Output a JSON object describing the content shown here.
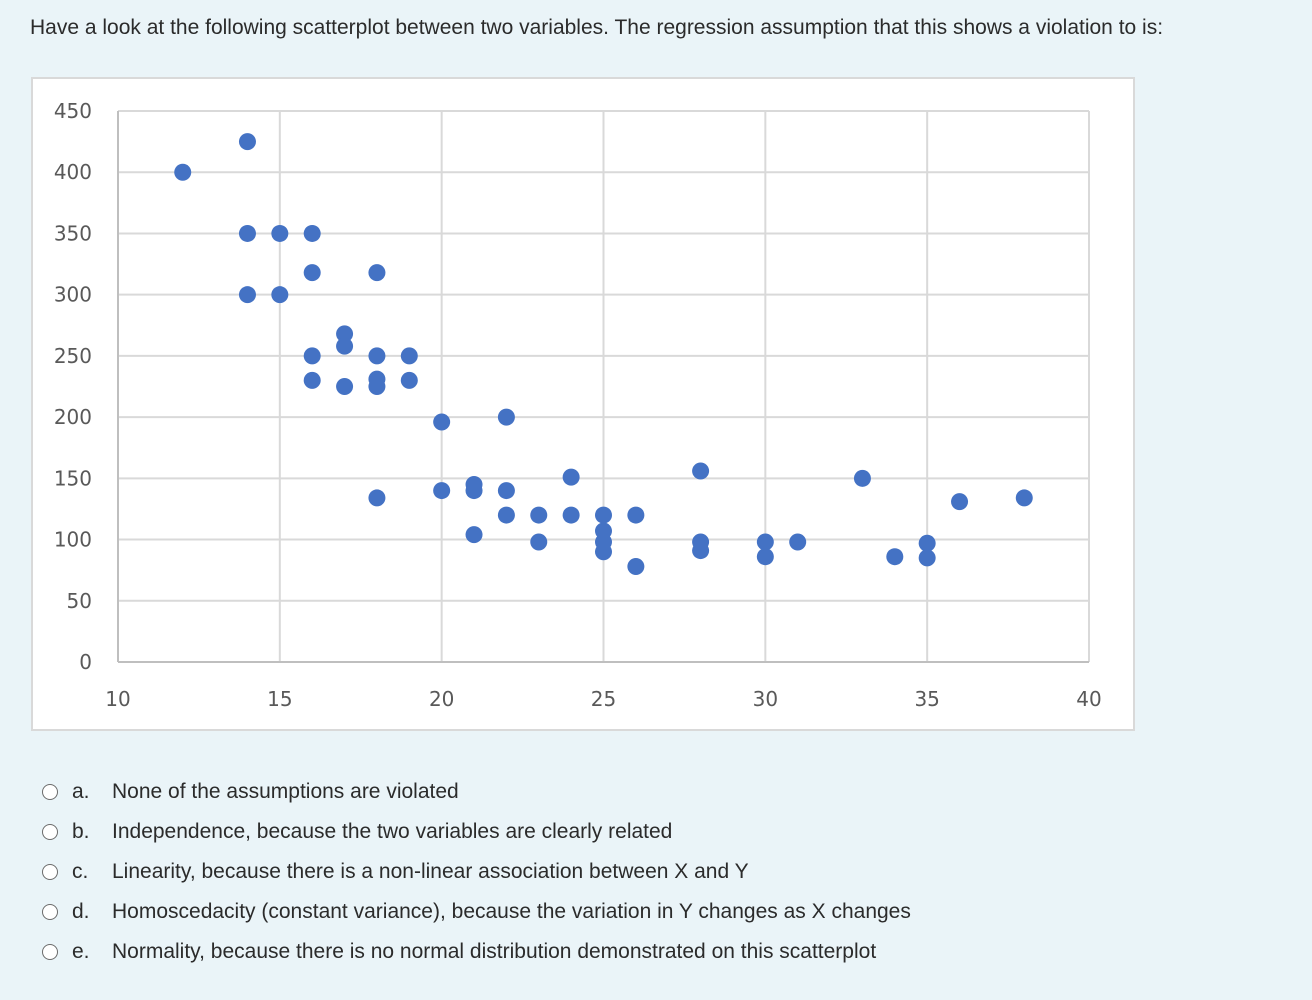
{
  "question": {
    "text": "Have a look at the following scatterplot between two variables. The regression assumption that this shows a violation to is:"
  },
  "chart_data": {
    "type": "scatter",
    "title": "",
    "xlabel": "",
    "ylabel": "",
    "xlim": [
      10,
      40
    ],
    "ylim": [
      0,
      450
    ],
    "x_ticks": [
      10,
      15,
      20,
      25,
      30,
      35,
      40
    ],
    "y_ticks": [
      0,
      50,
      100,
      150,
      200,
      250,
      300,
      350,
      400,
      450
    ],
    "grid": true,
    "marker_color": "#4472c4",
    "points": [
      [
        12,
        400
      ],
      [
        14,
        425
      ],
      [
        14,
        350
      ],
      [
        14,
        300
      ],
      [
        15,
        350
      ],
      [
        15,
        300
      ],
      [
        16,
        350
      ],
      [
        16,
        318
      ],
      [
        16,
        250
      ],
      [
        16,
        230
      ],
      [
        17,
        268
      ],
      [
        17,
        258
      ],
      [
        17,
        225
      ],
      [
        18,
        318
      ],
      [
        18,
        250
      ],
      [
        18,
        231
      ],
      [
        18,
        225
      ],
      [
        18,
        134
      ],
      [
        19,
        250
      ],
      [
        19,
        230
      ],
      [
        20,
        196
      ],
      [
        20,
        140
      ],
      [
        21,
        145
      ],
      [
        21,
        140
      ],
      [
        21,
        104
      ],
      [
        22,
        200
      ],
      [
        22,
        140
      ],
      [
        22,
        120
      ],
      [
        23,
        120
      ],
      [
        23,
        98
      ],
      [
        24,
        151
      ],
      [
        24,
        120
      ],
      [
        25,
        120
      ],
      [
        25,
        107
      ],
      [
        25,
        98
      ],
      [
        25,
        90
      ],
      [
        26,
        120
      ],
      [
        26,
        78
      ],
      [
        28,
        156
      ],
      [
        28,
        98
      ],
      [
        28,
        91
      ],
      [
        30,
        98
      ],
      [
        30,
        86
      ],
      [
        31,
        98
      ],
      [
        33,
        150
      ],
      [
        34,
        86
      ],
      [
        35,
        97
      ],
      [
        35,
        85
      ],
      [
        36,
        131
      ],
      [
        38,
        134
      ]
    ]
  },
  "options": [
    {
      "letter": "a.",
      "text": "None of the assumptions are violated"
    },
    {
      "letter": "b.",
      "text": "Independence, because the two variables are clearly related"
    },
    {
      "letter": "c.",
      "text": "Linearity, because there is a non-linear association between X and Y"
    },
    {
      "letter": "d.",
      "text": "Homoscedacity (constant variance), because the variation in Y changes as X changes"
    },
    {
      "letter": "e.",
      "text": "Normality, because there is no normal distribution demonstrated on this scatterplot"
    }
  ]
}
